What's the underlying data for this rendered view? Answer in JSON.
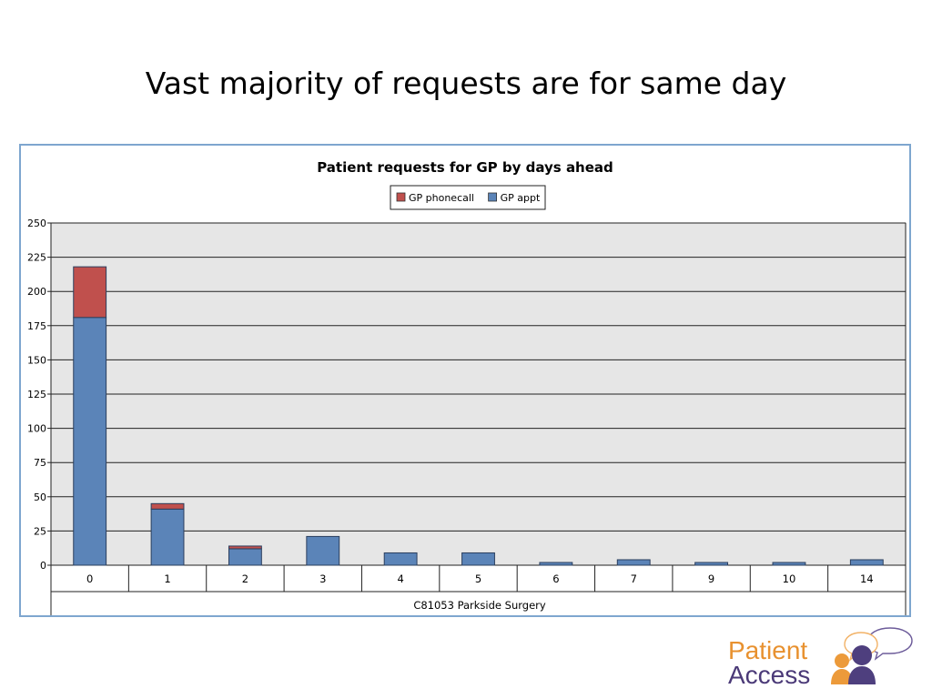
{
  "slide": {
    "title": "Vast majority of requests are for same day"
  },
  "chart_data": {
    "type": "bar",
    "stacked": true,
    "title": "Patient requests for GP by days ahead",
    "xlabel": "C81053 Parkside Surgery",
    "ylabel": "",
    "categories": [
      "0",
      "1",
      "2",
      "3",
      "4",
      "5",
      "6",
      "7",
      "9",
      "10",
      "14"
    ],
    "series": [
      {
        "name": "GP appt",
        "color": "#5b84b8",
        "values": [
          181,
          41,
          12,
          21,
          9,
          9,
          2,
          4,
          2,
          2,
          4
        ]
      },
      {
        "name": "GP phonecall",
        "color": "#c0504d",
        "values": [
          37,
          4,
          2,
          0,
          0,
          0,
          0,
          0,
          0,
          0,
          0
        ]
      }
    ],
    "legend_order": [
      "GP phonecall",
      "GP appt"
    ],
    "legend_position": "top-center",
    "ylim": [
      0,
      250
    ],
    "yticks": [
      0,
      25,
      50,
      75,
      100,
      125,
      150,
      175,
      200,
      225,
      250
    ],
    "grid": true,
    "plot_background": "#e6e6e6"
  },
  "logo": {
    "line1": "Patient",
    "line2": "Access"
  }
}
